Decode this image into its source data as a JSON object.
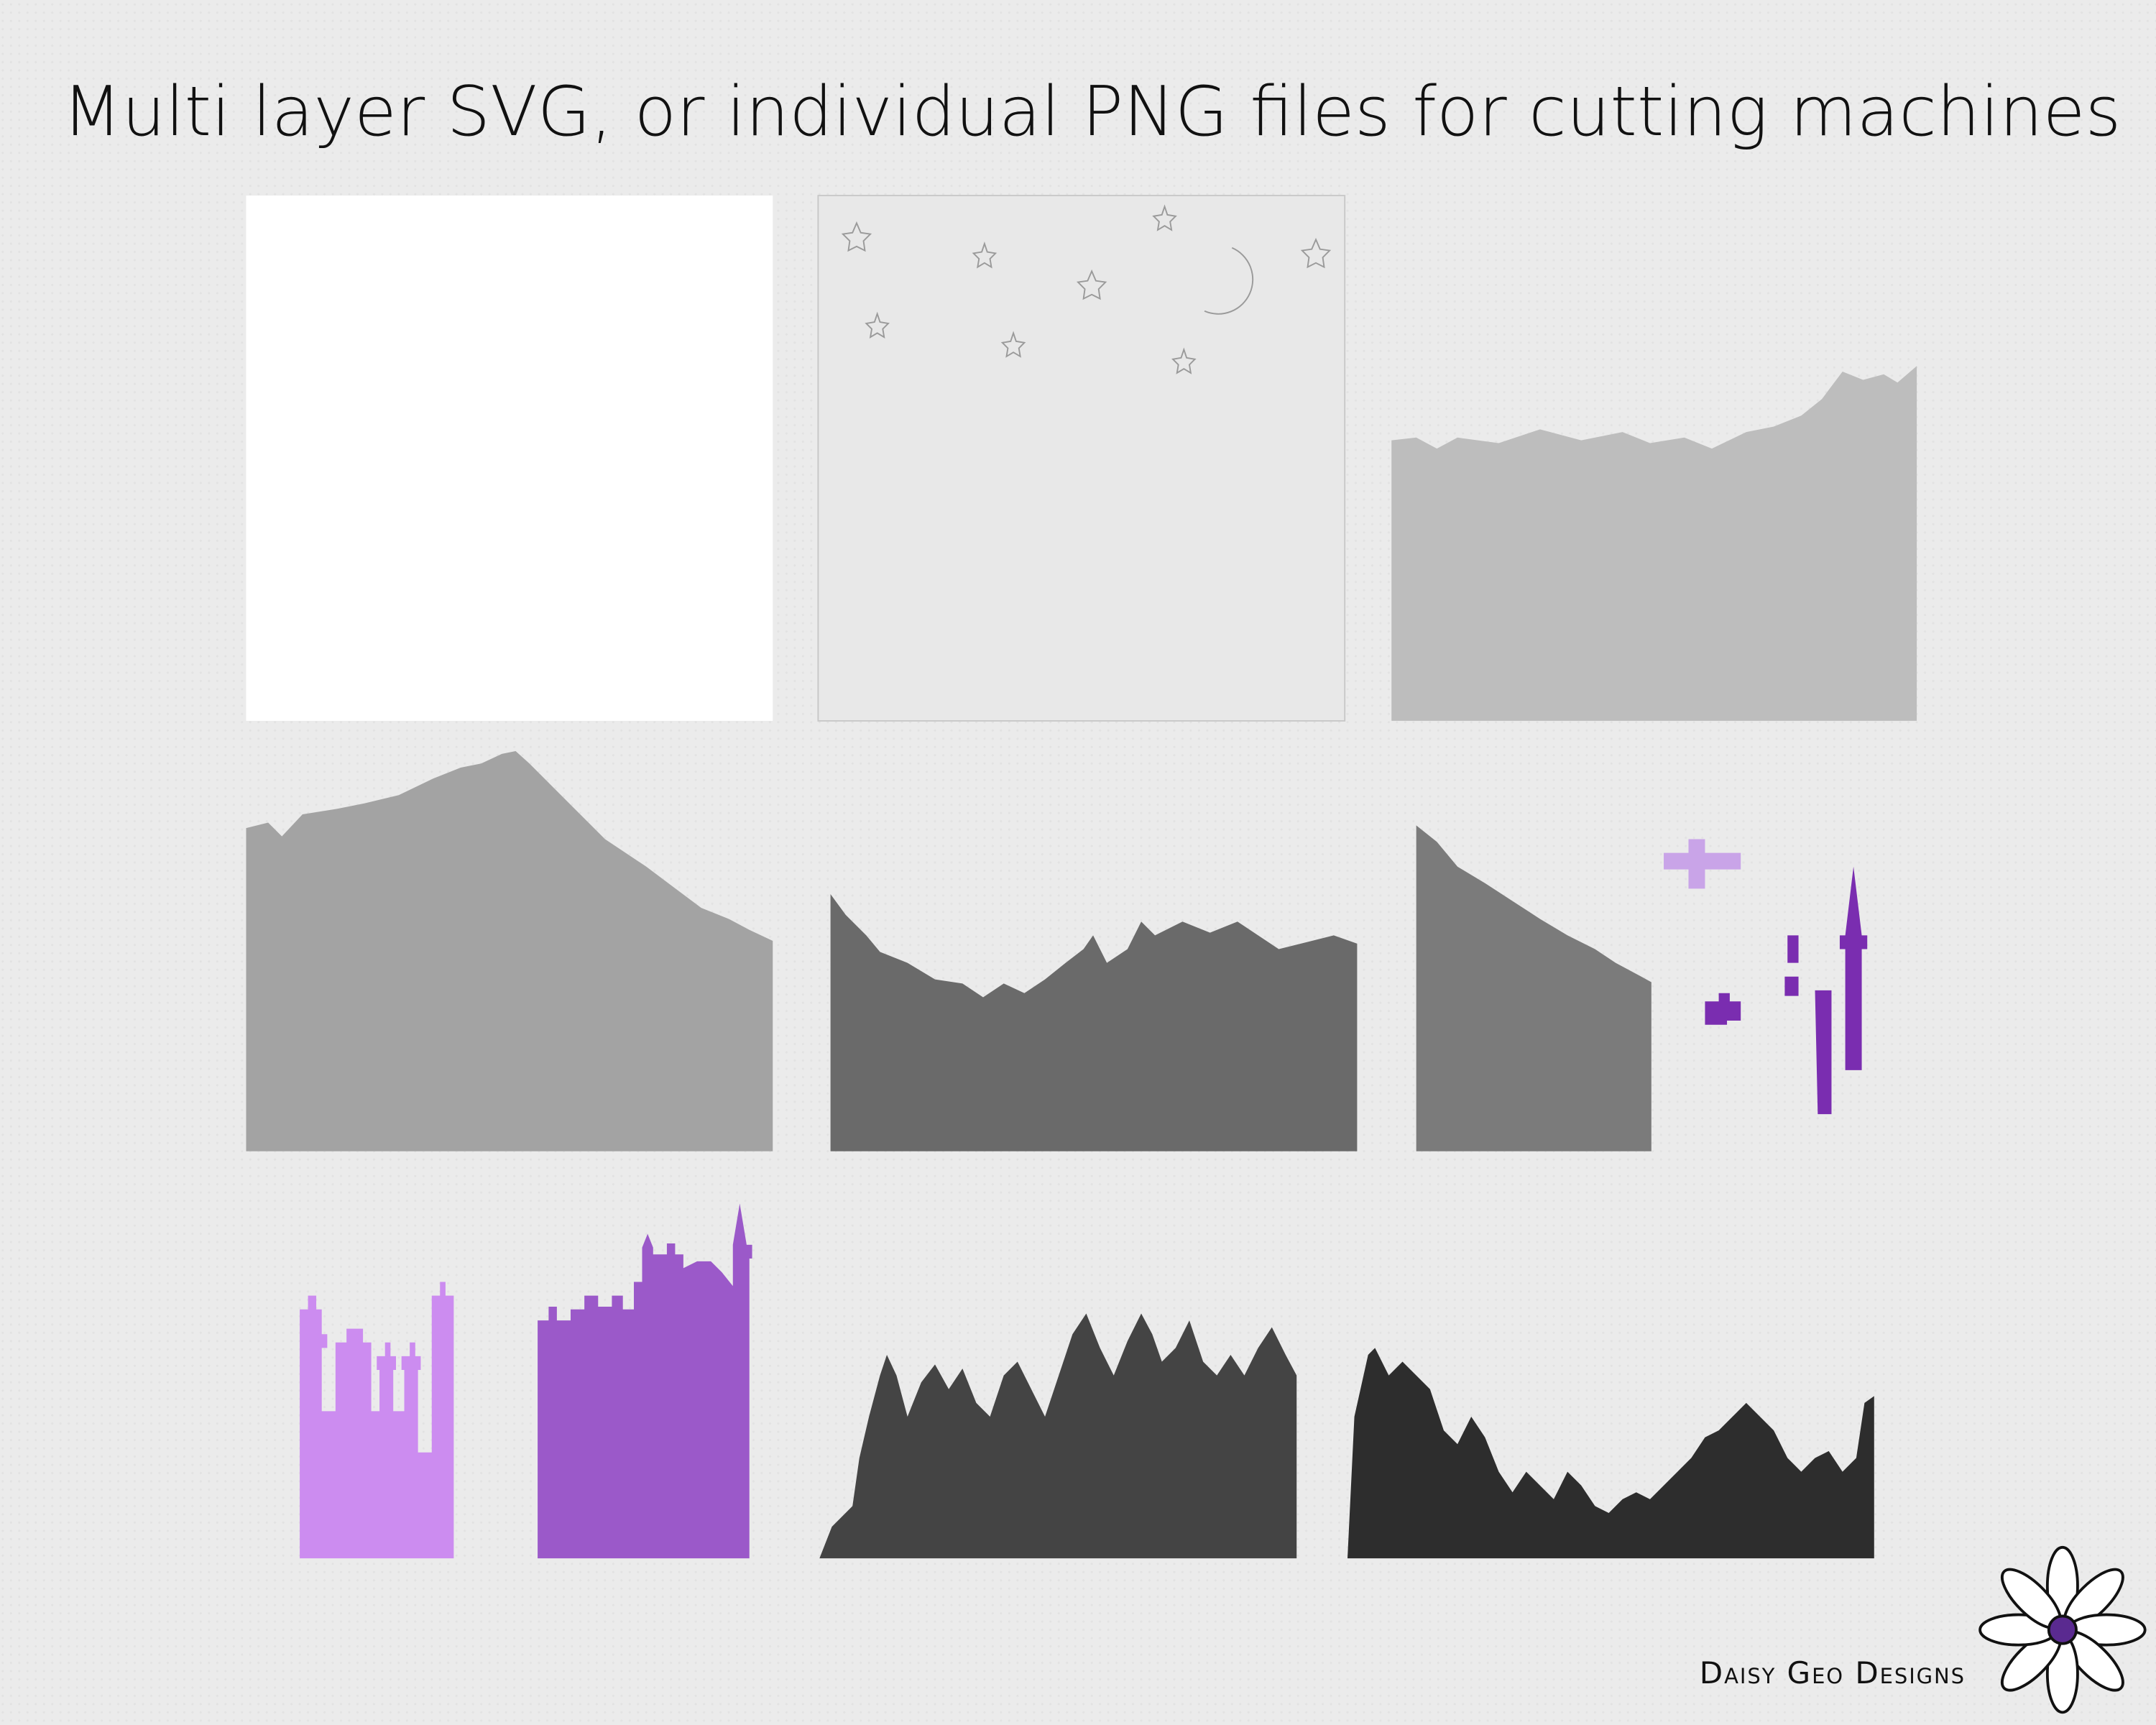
{
  "header": {
    "title": "Multi layer SVG, or individual PNG files for cutting machines"
  },
  "footer": {
    "brand": "Daisy Geo Designs"
  }
}
